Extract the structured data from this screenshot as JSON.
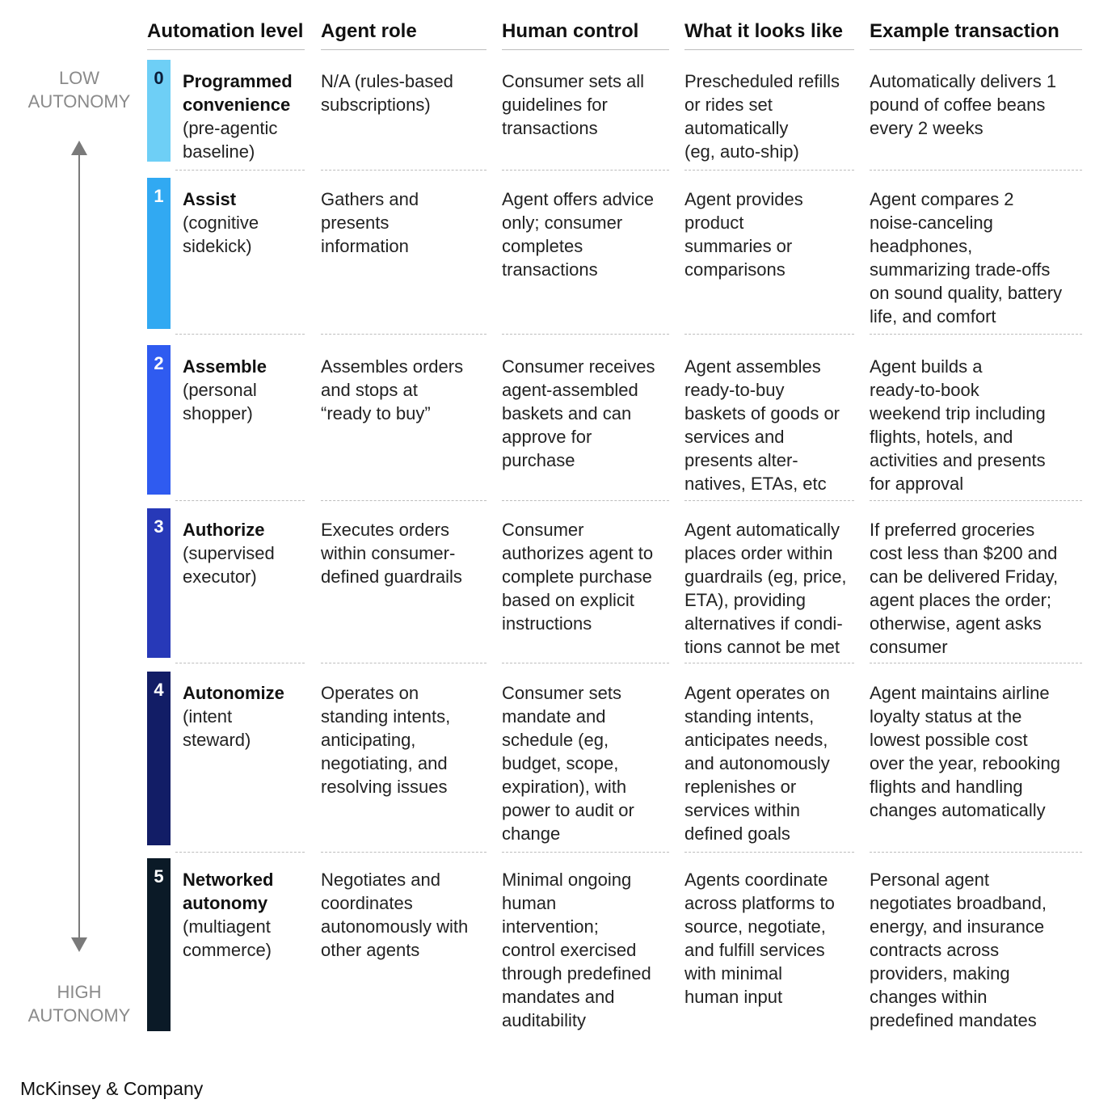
{
  "headers": [
    "Automation level",
    "Agent role",
    "Human control",
    "What it looks like",
    "Example transaction"
  ],
  "axis": {
    "top_label": [
      "LOW",
      "AUTONOMY"
    ],
    "bottom_label": [
      "HIGH",
      "AUTONOMY"
    ]
  },
  "colors": [
    "#6ecff6",
    "#31a9f2",
    "#2f5bf0",
    "#2739b8",
    "#121d66",
    "#0b1a27"
  ],
  "levels": [
    {
      "number": "0",
      "name": [
        "Programmed",
        "convenience"
      ],
      "sub": [
        "(pre-agentic",
        "baseline)"
      ],
      "agent_role": [
        "N/A (rules-based",
        "subscriptions)"
      ],
      "human_control": [
        "Consumer sets all",
        "guidelines for",
        "transactions"
      ],
      "looks_like": [
        "Prescheduled refills",
        "or rides set",
        "automatically",
        "(eg, auto-ship)"
      ],
      "example": [
        "Automatically delivers 1",
        "pound of coffee beans",
        "every 2 weeks"
      ]
    },
    {
      "number": "1",
      "name": [
        "Assist"
      ],
      "sub": [
        "(cognitive",
        "sidekick)"
      ],
      "agent_role": [
        "Gathers and",
        "presents",
        "information"
      ],
      "human_control": [
        "Agent offers advice",
        "only; consumer",
        "completes",
        "transactions"
      ],
      "looks_like": [
        "Agent provides",
        "product",
        "summaries or",
        "comparisons"
      ],
      "example": [
        "Agent compares 2",
        "noise-canceling",
        "headphones,",
        "summarizing trade-offs",
        "on sound quality, battery",
        "life, and comfort"
      ]
    },
    {
      "number": "2",
      "name": [
        "Assemble"
      ],
      "sub": [
        "(personal",
        "shopper)"
      ],
      "agent_role": [
        "Assembles orders",
        "and stops at",
        "“ready to buy”"
      ],
      "human_control": [
        "Consumer receives",
        "agent-assembled",
        "baskets and can",
        "approve for",
        "purchase"
      ],
      "looks_like": [
        "Agent assembles",
        "ready-to-buy",
        "baskets of goods or",
        "services and",
        "presents alter-",
        "natives, ETAs, etc"
      ],
      "example": [
        "Agent builds a",
        "ready-to-book",
        "weekend trip including",
        "flights, hotels, and",
        "activities and presents",
        "for approval"
      ]
    },
    {
      "number": "3",
      "name": [
        "Authorize"
      ],
      "sub": [
        "(supervised",
        "executor)"
      ],
      "agent_role": [
        "Executes orders",
        "within consumer-",
        "defined guardrails"
      ],
      "human_control": [
        "Consumer",
        "authorizes agent to",
        "complete purchase",
        "based on explicit",
        "instructions"
      ],
      "looks_like": [
        "Agent automatically",
        "places order within",
        "guardrails (eg, price,",
        "ETA), providing",
        "alternatives if condi-",
        "tions cannot be met"
      ],
      "example": [
        "If preferred groceries",
        "cost less than $200 and",
        "can be delivered Friday,",
        "agent places the order;",
        "otherwise, agent asks",
        "consumer"
      ]
    },
    {
      "number": "4",
      "name": [
        "Autonomize"
      ],
      "sub": [
        "(intent",
        "steward)"
      ],
      "agent_role": [
        "Operates on",
        "standing intents,",
        "anticipating,",
        "negotiating, and",
        "resolving issues"
      ],
      "human_control": [
        "Consumer sets",
        "mandate and",
        "schedule (eg,",
        "budget, scope,",
        "expiration), with",
        "power to audit or",
        "change"
      ],
      "looks_like": [
        "Agent operates on",
        "standing intents,",
        "anticipates needs,",
        "and autonomously",
        "replenishes or",
        "services within",
        "defined goals"
      ],
      "example": [
        "Agent maintains airline",
        "loyalty status at the",
        "lowest possible cost",
        "over the year, rebooking",
        "flights and handling",
        "changes automatically"
      ]
    },
    {
      "number": "5",
      "name": [
        "Networked",
        "autonomy"
      ],
      "sub": [
        "(multiagent",
        "commerce)"
      ],
      "agent_role": [
        "Negotiates and",
        "coordinates",
        "autonomously with",
        "other agents"
      ],
      "human_control": [
        "Minimal ongoing",
        "human",
        "intervention;",
        "control exercised",
        "through predefined",
        "mandates and",
        "auditability"
      ],
      "looks_like": [
        "Agents coordinate",
        "across platforms to",
        "source, negotiate,",
        "and fulfill services",
        "with minimal",
        "human input"
      ],
      "example": [
        "Personal agent",
        "negotiates broadband,",
        "energy, and insurance",
        "contracts across",
        "providers, making",
        "changes within",
        "predefined mandates"
      ]
    }
  ],
  "footer": "McKinsey & Company"
}
